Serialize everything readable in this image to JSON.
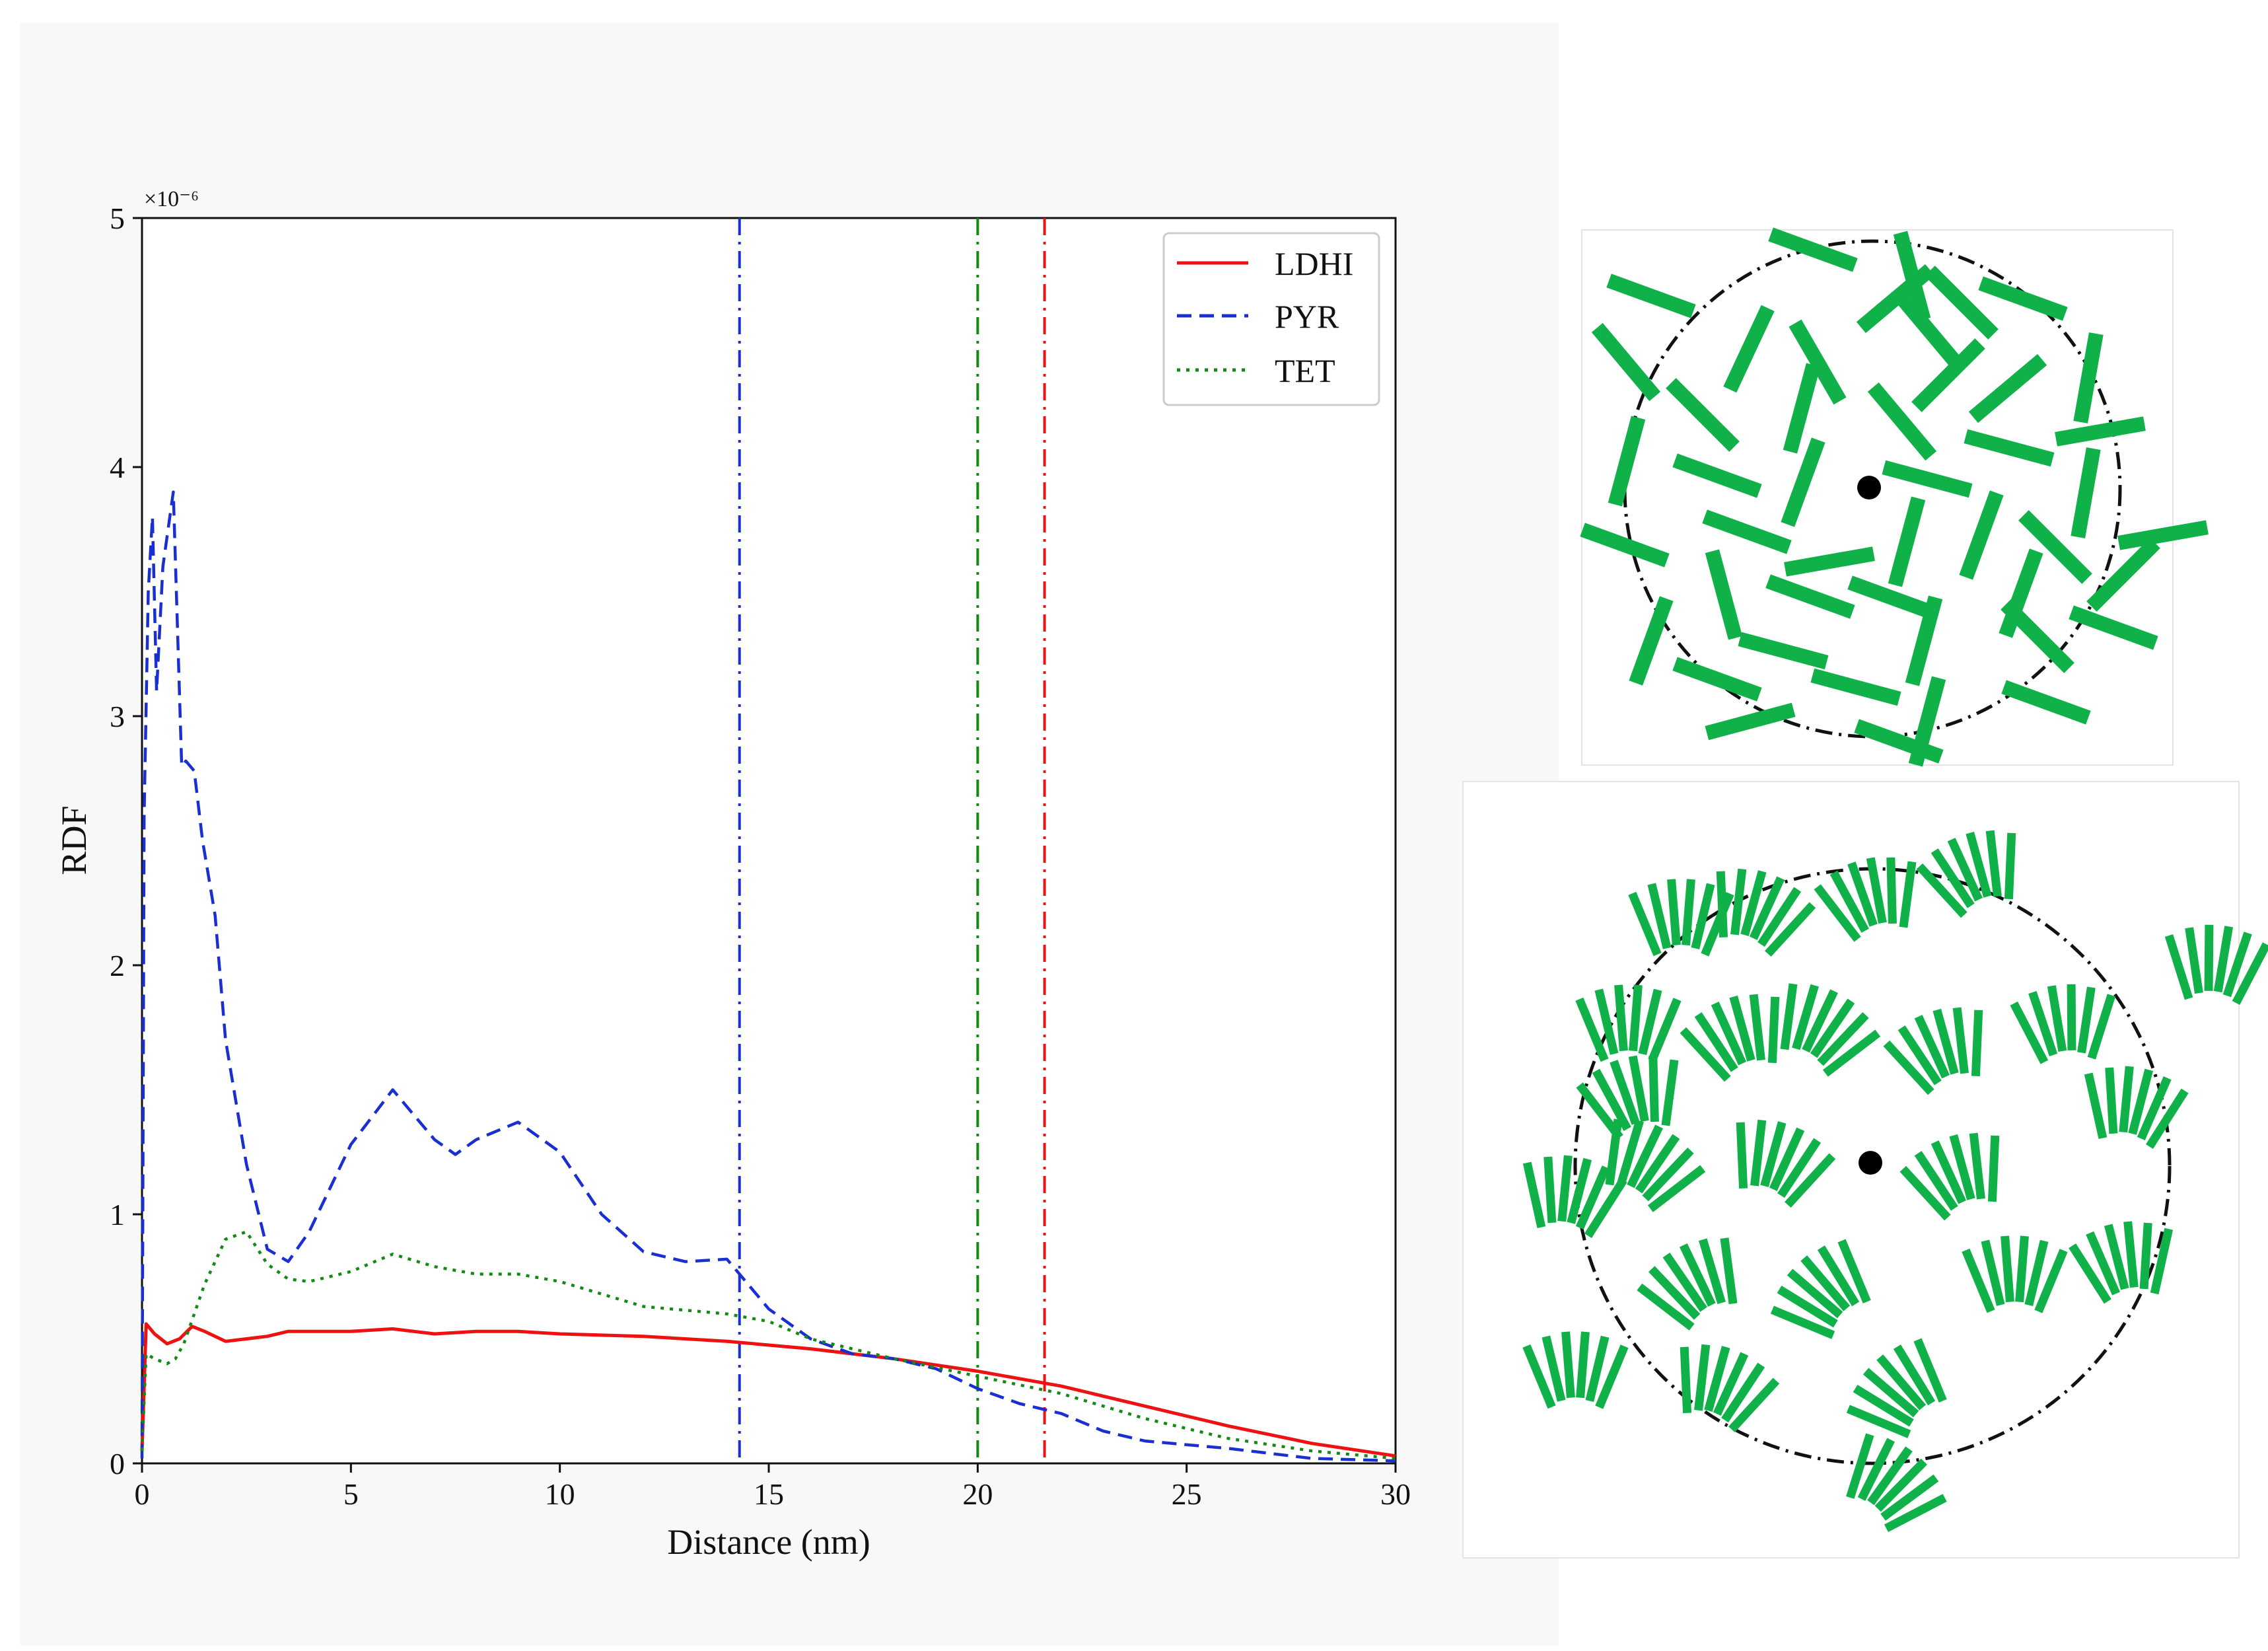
{
  "chart_data": {
    "type": "line",
    "title": "",
    "xlabel": "Distance (nm)",
    "ylabel": "RDF",
    "y_multiplier": "×10⁻⁶",
    "xlim": [
      0,
      30
    ],
    "ylim": [
      0,
      5
    ],
    "xticks": [
      0,
      5,
      10,
      15,
      20,
      25,
      30
    ],
    "yticks": [
      0,
      1,
      2,
      3,
      4,
      5
    ],
    "grid": false,
    "legend_position": "top-right",
    "series": [
      {
        "name": "LDHI",
        "color": "#ee1111",
        "style": "solid",
        "x": [
          0,
          0.1,
          0.3,
          0.6,
          0.9,
          1.2,
          1.5,
          2.0,
          2.5,
          3.0,
          3.5,
          4.0,
          5.0,
          6.0,
          7.0,
          8.0,
          9.0,
          10.0,
          12.0,
          14.0,
          16.0,
          18.0,
          20.0,
          22.0,
          24.0,
          26.0,
          28.0,
          30.0
        ],
        "values": [
          0.05,
          0.56,
          0.52,
          0.48,
          0.5,
          0.55,
          0.53,
          0.49,
          0.5,
          0.51,
          0.53,
          0.53,
          0.53,
          0.54,
          0.52,
          0.53,
          0.53,
          0.52,
          0.51,
          0.49,
          0.46,
          0.42,
          0.37,
          0.31,
          0.23,
          0.15,
          0.08,
          0.03
        ]
      },
      {
        "name": "PYR",
        "color": "#1a2fd1",
        "style": "dashed",
        "x": [
          0,
          0.05,
          0.15,
          0.25,
          0.35,
          0.5,
          0.75,
          0.95,
          1.05,
          1.25,
          1.45,
          1.75,
          2.0,
          2.5,
          3.0,
          3.5,
          4.0,
          5.0,
          6.0,
          7.0,
          7.5,
          8.0,
          9.0,
          10.0,
          11.0,
          12.0,
          13.0,
          14.0,
          15.0,
          16.0,
          17.0,
          18.0,
          19.0,
          20.0,
          21.0,
          22.0,
          23.0,
          24.0,
          26.0,
          28.0,
          30.0
        ],
        "values": [
          0.02,
          2.6,
          3.5,
          3.8,
          3.1,
          3.6,
          3.9,
          2.8,
          2.82,
          2.78,
          2.5,
          2.2,
          1.7,
          1.2,
          0.86,
          0.81,
          0.93,
          1.28,
          1.5,
          1.3,
          1.24,
          1.3,
          1.37,
          1.25,
          1.0,
          0.85,
          0.81,
          0.82,
          0.62,
          0.5,
          0.44,
          0.42,
          0.38,
          0.3,
          0.24,
          0.2,
          0.13,
          0.09,
          0.06,
          0.02,
          0.01
        ]
      },
      {
        "name": "TET",
        "color": "#138a13",
        "style": "dotted",
        "x": [
          0,
          0.1,
          0.3,
          0.6,
          0.8,
          1.0,
          1.5,
          2.0,
          2.5,
          3.0,
          3.5,
          4.0,
          5.0,
          6.0,
          7.0,
          8.0,
          9.0,
          10.0,
          12.0,
          14.0,
          15.0,
          16.0,
          18.0,
          20.0,
          22.0,
          24.0,
          26.0,
          28.0,
          30.0
        ],
        "values": [
          0.05,
          0.44,
          0.42,
          0.4,
          0.42,
          0.48,
          0.72,
          0.9,
          0.93,
          0.8,
          0.74,
          0.73,
          0.77,
          0.84,
          0.79,
          0.76,
          0.76,
          0.73,
          0.63,
          0.6,
          0.57,
          0.5,
          0.42,
          0.35,
          0.28,
          0.18,
          0.1,
          0.05,
          0.02
        ]
      }
    ],
    "vertical_lines": [
      {
        "x": 14.3,
        "color": "#1a2fd1"
      },
      {
        "x": 20.0,
        "color": "#138a13"
      },
      {
        "x": 21.6,
        "color": "#ee1111"
      }
    ]
  },
  "diagrams": {
    "top_panel": "random rod packing",
    "bottom_panel": "stacked columnar arcs",
    "rod_color": "#11b14a"
  }
}
